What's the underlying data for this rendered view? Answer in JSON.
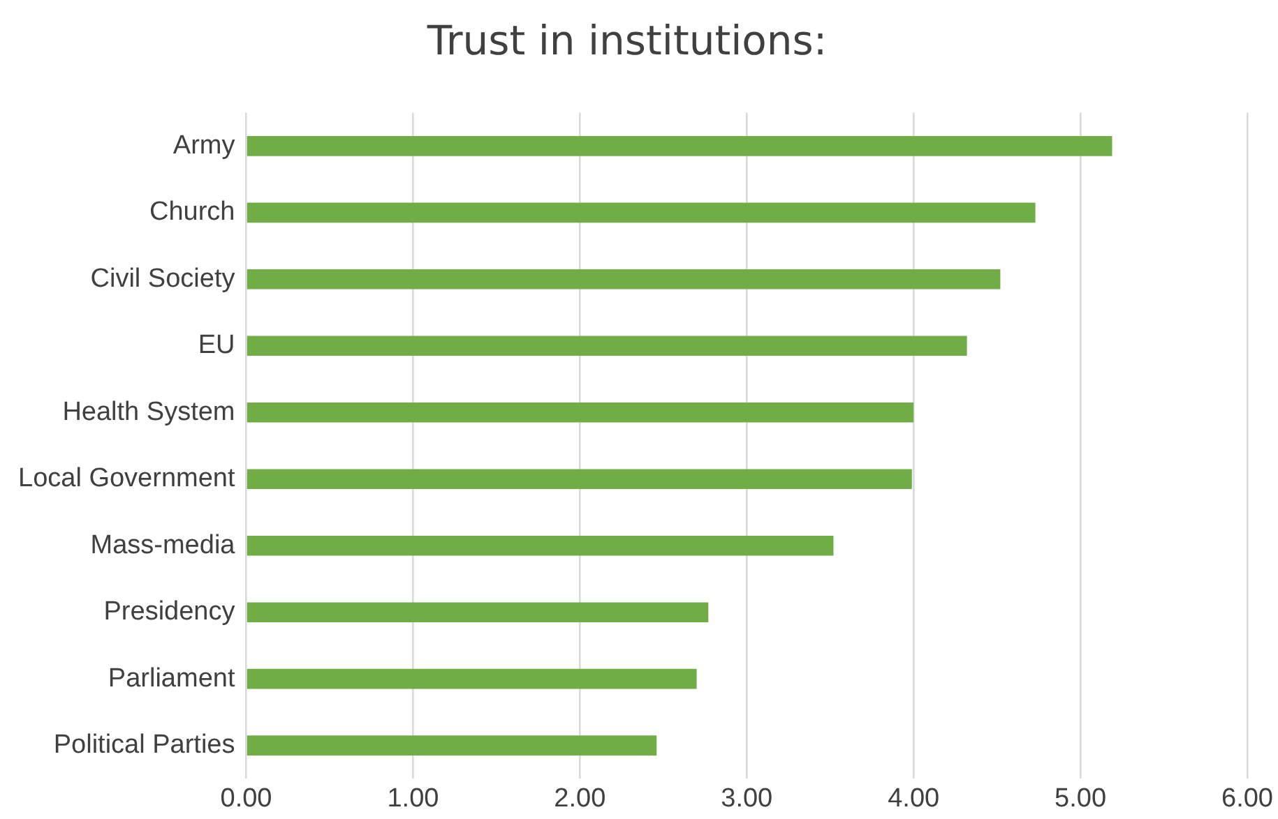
{
  "chart_data": {
    "type": "bar",
    "orientation": "horizontal",
    "title": "Trust in institutions:",
    "categories": [
      "Army",
      "Church",
      "Civil Society",
      "EU",
      "Health System",
      "Local Government",
      "Mass-media",
      "Presidency",
      "Parliament",
      "Political Parties"
    ],
    "values": [
      5.19,
      4.73,
      4.52,
      4.32,
      4.0,
      3.99,
      3.52,
      2.77,
      2.7,
      2.46
    ],
    "color": "#70ad47",
    "xlim": [
      0,
      6
    ],
    "xticks": [
      {
        "value": 0,
        "label": "0.00"
      },
      {
        "value": 1,
        "label": "1.00"
      },
      {
        "value": 2,
        "label": "2.00"
      },
      {
        "value": 3,
        "label": "3.00"
      },
      {
        "value": 4,
        "label": "4.00"
      },
      {
        "value": 5,
        "label": "5.00"
      },
      {
        "value": 6,
        "label": "6.00"
      }
    ],
    "grid": "x",
    "legend": false
  }
}
